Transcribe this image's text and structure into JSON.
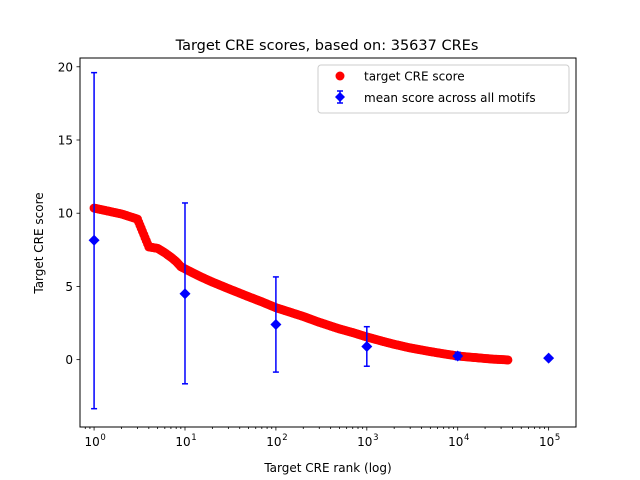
{
  "chart_data": {
    "type": "scatter",
    "title": "Target CRE scores, based on: 35637 CREs",
    "xlabel": "Target CRE rank (log)",
    "ylabel": "Target CRE score",
    "xscale": "log",
    "xlim": [
      0.7,
      200000
    ],
    "ylim": [
      -4.6,
      20.6
    ],
    "x_ticks": [
      {
        "value": 1,
        "base": "10",
        "exp": "0"
      },
      {
        "value": 10,
        "base": "10",
        "exp": "1"
      },
      {
        "value": 100,
        "base": "10",
        "exp": "2"
      },
      {
        "value": 1000,
        "base": "10",
        "exp": "3"
      },
      {
        "value": 10000,
        "base": "10",
        "exp": "4"
      },
      {
        "value": 100000,
        "base": "10",
        "exp": "5"
      }
    ],
    "y_ticks": [
      {
        "value": 0,
        "label": "0"
      },
      {
        "value": 5,
        "label": "5"
      },
      {
        "value": 10,
        "label": "10"
      },
      {
        "value": 15,
        "label": "15"
      },
      {
        "value": 20,
        "label": "20"
      }
    ],
    "grid": false,
    "legend": {
      "position": "top-right",
      "entries": [
        {
          "label": "target CRE score",
          "color": "#ff0000",
          "marker": "circle"
        },
        {
          "label": "mean score across all motifs",
          "color": "#0000ff",
          "marker": "diamond-errorbar"
        }
      ]
    },
    "series": [
      {
        "name": "target CRE score",
        "color": "#ff0000",
        "marker": "circle",
        "points": [
          [
            1,
            10.35
          ],
          [
            2,
            9.95
          ],
          [
            3,
            9.6
          ],
          [
            4,
            7.7
          ],
          [
            5,
            7.6
          ],
          [
            6,
            7.3
          ],
          [
            7,
            7.0
          ],
          [
            8,
            6.7
          ],
          [
            9,
            6.35
          ],
          [
            10,
            6.2
          ],
          [
            12,
            5.95
          ],
          [
            15,
            5.65
          ],
          [
            20,
            5.3
          ],
          [
            30,
            4.85
          ],
          [
            50,
            4.3
          ],
          [
            70,
            3.95
          ],
          [
            100,
            3.55
          ],
          [
            150,
            3.2
          ],
          [
            200,
            2.95
          ],
          [
            300,
            2.55
          ],
          [
            500,
            2.1
          ],
          [
            700,
            1.85
          ],
          [
            1000,
            1.55
          ],
          [
            1500,
            1.25
          ],
          [
            2000,
            1.05
          ],
          [
            3000,
            0.8
          ],
          [
            5000,
            0.55
          ],
          [
            7000,
            0.4
          ],
          [
            10000,
            0.25
          ],
          [
            15000,
            0.15
          ],
          [
            20000,
            0.08
          ],
          [
            25000,
            0.03
          ],
          [
            30000,
            0.01
          ],
          [
            35637,
            -0.02
          ]
        ]
      },
      {
        "name": "mean score across all motifs",
        "color": "#0000ff",
        "marker": "diamond",
        "points": [
          {
            "x": 1,
            "y": 8.15,
            "low": -3.35,
            "high": 19.6
          },
          {
            "x": 10,
            "y": 4.5,
            "low": -1.65,
            "high": 10.7
          },
          {
            "x": 100,
            "y": 2.4,
            "low": -0.85,
            "high": 5.65
          },
          {
            "x": 1000,
            "y": 0.9,
            "low": -0.45,
            "high": 2.25
          },
          {
            "x": 10000,
            "y": 0.25,
            "low": 0.0,
            "high": 0.5
          },
          {
            "x": 100000,
            "y": 0.1,
            "low": 0.1,
            "high": 0.1
          }
        ]
      }
    ]
  }
}
